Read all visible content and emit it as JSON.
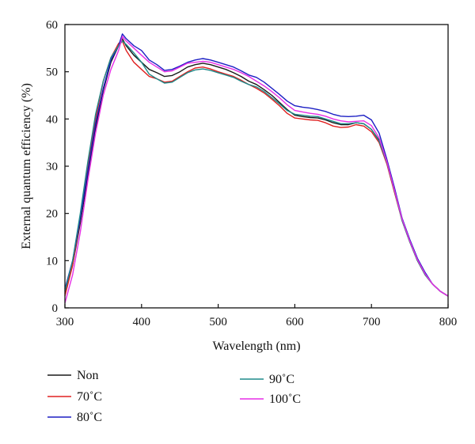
{
  "chart_data": {
    "type": "line",
    "xlabel": "Wavelength (nm)",
    "ylabel": "External quantum efficiency (%)",
    "xlim": [
      300,
      800
    ],
    "ylim": [
      0,
      60
    ],
    "xticks": [
      300,
      400,
      500,
      600,
      700,
      800
    ],
    "yticks": [
      0,
      10,
      20,
      30,
      40,
      50,
      60
    ],
    "grid": false,
    "legend_position": "bottom",
    "series": [
      {
        "name": "Non",
        "color": "#1a1a1a",
        "points": [
          [
            300,
            3
          ],
          [
            310,
            9
          ],
          [
            320,
            18
          ],
          [
            330,
            28
          ],
          [
            340,
            38
          ],
          [
            350,
            46
          ],
          [
            360,
            52
          ],
          [
            370,
            55.5
          ],
          [
            375,
            57
          ],
          [
            380,
            55.5
          ],
          [
            390,
            53.5
          ],
          [
            400,
            52
          ],
          [
            410,
            50.5
          ],
          [
            420,
            49.8
          ],
          [
            430,
            49
          ],
          [
            440,
            49.2
          ],
          [
            450,
            50
          ],
          [
            460,
            51
          ],
          [
            470,
            51.5
          ],
          [
            480,
            51.8
          ],
          [
            490,
            51.5
          ],
          [
            500,
            51
          ],
          [
            510,
            50.5
          ],
          [
            520,
            49.8
          ],
          [
            530,
            49
          ],
          [
            540,
            48
          ],
          [
            550,
            47.3
          ],
          [
            560,
            46.2
          ],
          [
            570,
            45
          ],
          [
            580,
            43.5
          ],
          [
            590,
            42
          ],
          [
            600,
            40.8
          ],
          [
            610,
            40.5
          ],
          [
            620,
            40.3
          ],
          [
            630,
            40.2
          ],
          [
            640,
            39.8
          ],
          [
            650,
            39.2
          ],
          [
            660,
            38.8
          ],
          [
            670,
            38.8
          ],
          [
            680,
            39.2
          ],
          [
            690,
            39
          ],
          [
            700,
            37.8
          ],
          [
            710,
            35.5
          ],
          [
            720,
            31
          ],
          [
            730,
            25
          ],
          [
            740,
            18.5
          ],
          [
            750,
            14
          ],
          [
            760,
            10
          ],
          [
            770,
            7
          ],
          [
            780,
            5
          ],
          [
            790,
            3.5
          ],
          [
            800,
            2.5
          ]
        ]
      },
      {
        "name": "70˚C",
        "color": "#e02020",
        "points": [
          [
            300,
            2.5
          ],
          [
            310,
            9
          ],
          [
            320,
            19
          ],
          [
            330,
            30
          ],
          [
            340,
            40
          ],
          [
            350,
            48
          ],
          [
            360,
            53
          ],
          [
            370,
            56
          ],
          [
            375,
            56.5
          ],
          [
            380,
            54.5
          ],
          [
            390,
            52
          ],
          [
            400,
            50.5
          ],
          [
            410,
            49
          ],
          [
            420,
            48.5
          ],
          [
            430,
            47.8
          ],
          [
            440,
            48
          ],
          [
            450,
            49
          ],
          [
            460,
            50
          ],
          [
            470,
            50.8
          ],
          [
            480,
            51
          ],
          [
            490,
            50.6
          ],
          [
            500,
            50
          ],
          [
            510,
            49.5
          ],
          [
            520,
            49
          ],
          [
            530,
            48.2
          ],
          [
            540,
            47.3
          ],
          [
            550,
            46.5
          ],
          [
            560,
            45.5
          ],
          [
            570,
            44.2
          ],
          [
            580,
            42.8
          ],
          [
            590,
            41.2
          ],
          [
            600,
            40.2
          ],
          [
            610,
            40
          ],
          [
            620,
            39.8
          ],
          [
            630,
            39.7
          ],
          [
            640,
            39.2
          ],
          [
            650,
            38.5
          ],
          [
            660,
            38.2
          ],
          [
            670,
            38.3
          ],
          [
            680,
            38.8
          ],
          [
            690,
            38.5
          ],
          [
            700,
            37.3
          ],
          [
            710,
            35
          ],
          [
            720,
            30.5
          ],
          [
            730,
            24.5
          ],
          [
            740,
            18.5
          ],
          [
            750,
            14
          ],
          [
            760,
            10
          ],
          [
            770,
            7
          ],
          [
            780,
            5
          ],
          [
            790,
            3.5
          ],
          [
            800,
            2.5
          ]
        ]
      },
      {
        "name": "80˚C",
        "color": "#1c1fc4",
        "points": [
          [
            300,
            4
          ],
          [
            310,
            10
          ],
          [
            320,
            19
          ],
          [
            330,
            29
          ],
          [
            340,
            39
          ],
          [
            350,
            46.5
          ],
          [
            360,
            52.5
          ],
          [
            370,
            55.5
          ],
          [
            375,
            58
          ],
          [
            380,
            57
          ],
          [
            390,
            55.5
          ],
          [
            400,
            54.5
          ],
          [
            410,
            52.5
          ],
          [
            420,
            51.5
          ],
          [
            430,
            50.3
          ],
          [
            440,
            50.5
          ],
          [
            450,
            51.2
          ],
          [
            460,
            52
          ],
          [
            470,
            52.5
          ],
          [
            480,
            52.8
          ],
          [
            490,
            52.5
          ],
          [
            500,
            52
          ],
          [
            510,
            51.5
          ],
          [
            520,
            51
          ],
          [
            530,
            50.2
          ],
          [
            540,
            49.3
          ],
          [
            550,
            48.8
          ],
          [
            560,
            47.8
          ],
          [
            570,
            46.5
          ],
          [
            580,
            45.2
          ],
          [
            590,
            43.8
          ],
          [
            600,
            42.8
          ],
          [
            610,
            42.5
          ],
          [
            620,
            42.3
          ],
          [
            630,
            42
          ],
          [
            640,
            41.6
          ],
          [
            650,
            41
          ],
          [
            660,
            40.6
          ],
          [
            670,
            40.5
          ],
          [
            680,
            40.6
          ],
          [
            690,
            40.8
          ],
          [
            700,
            39.8
          ],
          [
            710,
            37
          ],
          [
            720,
            31.5
          ],
          [
            730,
            25.5
          ],
          [
            740,
            19
          ],
          [
            750,
            14.5
          ],
          [
            760,
            10.5
          ],
          [
            770,
            7.5
          ],
          [
            780,
            5
          ],
          [
            790,
            3.5
          ],
          [
            800,
            2.5
          ]
        ]
      },
      {
        "name": "90˚C",
        "color": "#1f8a8a",
        "points": [
          [
            300,
            3.5
          ],
          [
            310,
            10
          ],
          [
            320,
            20
          ],
          [
            330,
            31
          ],
          [
            340,
            41
          ],
          [
            350,
            48
          ],
          [
            360,
            53
          ],
          [
            370,
            55.5
          ],
          [
            375,
            56.5
          ],
          [
            380,
            55.8
          ],
          [
            390,
            54
          ],
          [
            400,
            52
          ],
          [
            410,
            49.5
          ],
          [
            420,
            48.5
          ],
          [
            430,
            47.6
          ],
          [
            440,
            47.8
          ],
          [
            450,
            48.8
          ],
          [
            460,
            49.8
          ],
          [
            470,
            50.4
          ],
          [
            480,
            50.6
          ],
          [
            490,
            50.3
          ],
          [
            500,
            49.8
          ],
          [
            510,
            49.3
          ],
          [
            520,
            48.8
          ],
          [
            530,
            48
          ],
          [
            540,
            47.3
          ],
          [
            550,
            46.8
          ],
          [
            560,
            45.8
          ],
          [
            570,
            44.5
          ],
          [
            580,
            43.2
          ],
          [
            590,
            41.8
          ],
          [
            600,
            41
          ],
          [
            610,
            40.8
          ],
          [
            620,
            40.6
          ],
          [
            630,
            40.5
          ],
          [
            640,
            40
          ],
          [
            650,
            39.5
          ],
          [
            660,
            39
          ],
          [
            670,
            39
          ],
          [
            680,
            39.2
          ],
          [
            690,
            39
          ],
          [
            700,
            37.8
          ],
          [
            710,
            35.3
          ],
          [
            720,
            30.8
          ],
          [
            730,
            24.8
          ],
          [
            740,
            18.5
          ],
          [
            750,
            14
          ],
          [
            760,
            10
          ],
          [
            770,
            7
          ],
          [
            780,
            5
          ],
          [
            790,
            3.5
          ],
          [
            800,
            2.5
          ]
        ]
      },
      {
        "name": "100˚C",
        "color": "#e62ee6",
        "points": [
          [
            300,
            1
          ],
          [
            310,
            7
          ],
          [
            320,
            16
          ],
          [
            330,
            27
          ],
          [
            340,
            37
          ],
          [
            350,
            45
          ],
          [
            360,
            50.5
          ],
          [
            370,
            54.5
          ],
          [
            375,
            57.5
          ],
          [
            380,
            56.5
          ],
          [
            390,
            55
          ],
          [
            400,
            53.5
          ],
          [
            410,
            52
          ],
          [
            420,
            51
          ],
          [
            430,
            50
          ],
          [
            440,
            50.2
          ],
          [
            450,
            51
          ],
          [
            460,
            51.8
          ],
          [
            470,
            52
          ],
          [
            480,
            52.2
          ],
          [
            490,
            52
          ],
          [
            500,
            51.5
          ],
          [
            510,
            51
          ],
          [
            520,
            50.5
          ],
          [
            530,
            49.8
          ],
          [
            540,
            49
          ],
          [
            550,
            48
          ],
          [
            560,
            47
          ],
          [
            570,
            45.8
          ],
          [
            580,
            44.5
          ],
          [
            590,
            43
          ],
          [
            600,
            41.8
          ],
          [
            610,
            41.5
          ],
          [
            620,
            41.2
          ],
          [
            630,
            41
          ],
          [
            640,
            40.6
          ],
          [
            650,
            40
          ],
          [
            660,
            39.6
          ],
          [
            670,
            39.4
          ],
          [
            680,
            39.5
          ],
          [
            690,
            39.6
          ],
          [
            700,
            38.6
          ],
          [
            710,
            36
          ],
          [
            720,
            31
          ],
          [
            730,
            25
          ],
          [
            740,
            18.8
          ],
          [
            750,
            14.2
          ],
          [
            760,
            10.2
          ],
          [
            770,
            7.2
          ],
          [
            780,
            5
          ],
          [
            790,
            3.5
          ],
          [
            800,
            2.5
          ]
        ]
      }
    ]
  }
}
